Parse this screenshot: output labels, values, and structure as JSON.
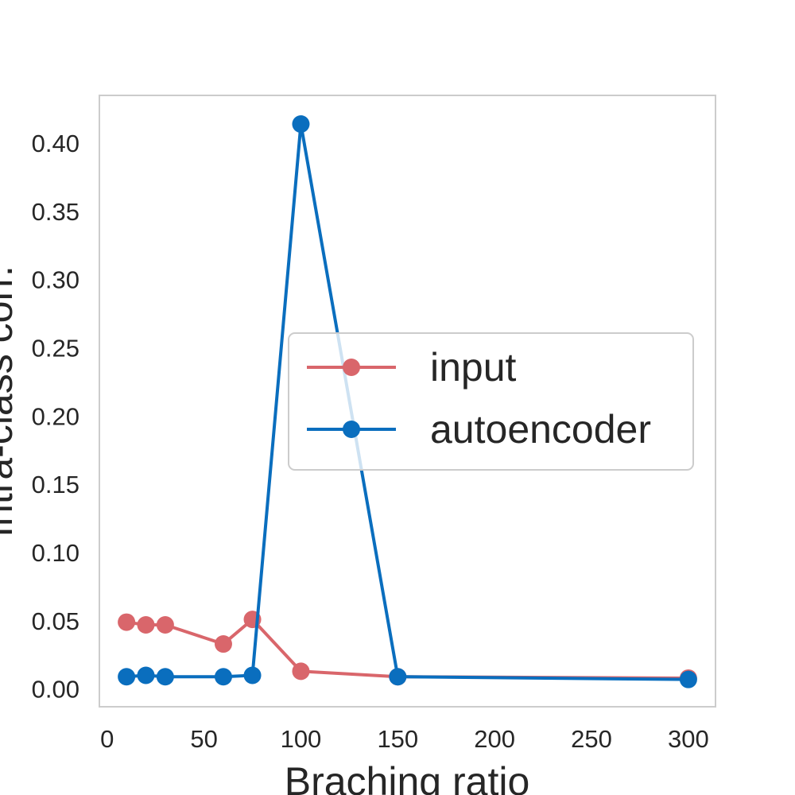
{
  "chart_data": {
    "type": "line",
    "xlabel": "Braching ratio",
    "ylabel": "Intra-class corr.",
    "xlim": [
      -4,
      314
    ],
    "ylim": [
      -0.013,
      0.435
    ],
    "xticks": [
      0,
      50,
      100,
      150,
      200,
      250,
      300
    ],
    "xtick_labels": [
      "0",
      "50",
      "100",
      "150",
      "200",
      "250",
      "300"
    ],
    "yticks": [
      0.0,
      0.05,
      0.1,
      0.15,
      0.2,
      0.25,
      0.3,
      0.35,
      0.4
    ],
    "ytick_labels": [
      "0.00",
      "0.05",
      "0.10",
      "0.15",
      "0.20",
      "0.25",
      "0.30",
      "0.35",
      "0.40"
    ],
    "grid": false,
    "legend_position": "center-right",
    "series": [
      {
        "name": "input",
        "color": "#d9666b",
        "x": [
          10,
          20,
          30,
          60,
          75,
          100,
          150,
          300
        ],
        "y": [
          0.049,
          0.047,
          0.047,
          0.033,
          0.051,
          0.013,
          0.009,
          0.008
        ]
      },
      {
        "name": "autoencoder",
        "color": "#0a6ebe",
        "x": [
          10,
          20,
          30,
          60,
          75,
          100,
          150,
          300
        ],
        "y": [
          0.009,
          0.01,
          0.009,
          0.009,
          0.01,
          0.414,
          0.009,
          0.007
        ]
      }
    ]
  }
}
